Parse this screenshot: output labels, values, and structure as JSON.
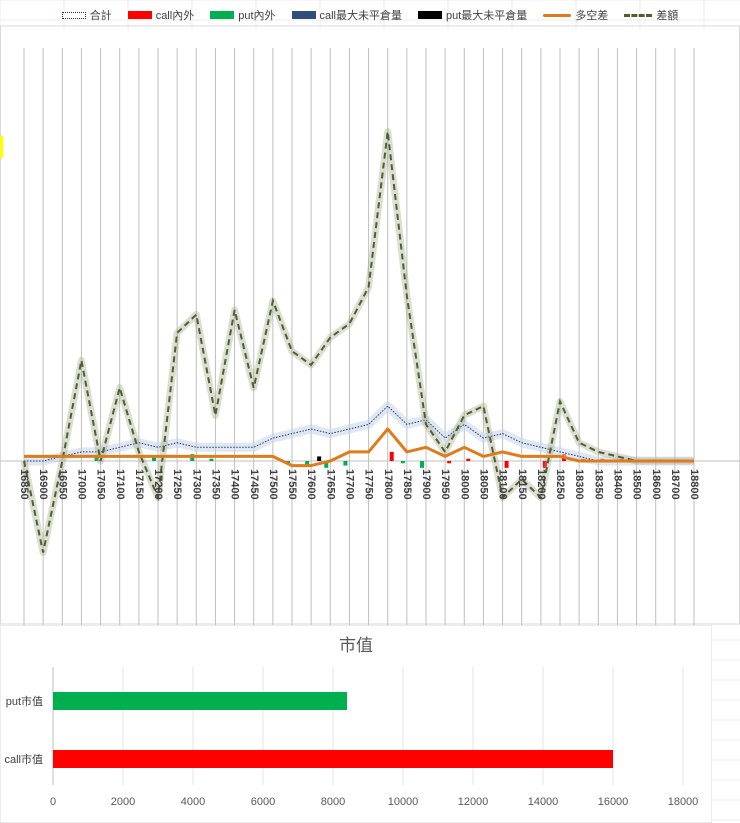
{
  "chart_data": [
    {
      "type": "line",
      "title": "",
      "categories": [
        16850,
        16900,
        16950,
        17000,
        17050,
        17100,
        17150,
        17200,
        17250,
        17300,
        17350,
        17400,
        17450,
        17500,
        17550,
        17600,
        17650,
        17700,
        17750,
        17800,
        17850,
        17900,
        17950,
        18000,
        18050,
        18100,
        18150,
        18200,
        18250,
        18300,
        18350,
        18400,
        18500,
        18600,
        18700,
        18800
      ],
      "series": [
        {
          "name": "合計",
          "kind": "line-dotted",
          "values": [
            0,
            0,
            1,
            2,
            2,
            3,
            4,
            3,
            4,
            3,
            3,
            3,
            3,
            5,
            6,
            7,
            6,
            7,
            8,
            12,
            8,
            9,
            5,
            8,
            5,
            6,
            4,
            3,
            2,
            1,
            0,
            0,
            0,
            0,
            0,
            0
          ]
        },
        {
          "name": "call內外",
          "kind": "bar",
          "values": [
            0,
            0,
            0,
            0,
            0,
            0,
            0,
            0,
            0,
            0,
            0,
            0,
            0,
            0,
            0,
            0,
            0,
            0,
            0,
            4,
            0,
            0,
            -1,
            1,
            0,
            -3,
            0,
            -3,
            3,
            1,
            1,
            1,
            0,
            0,
            0,
            0
          ]
        },
        {
          "name": "put內外",
          "kind": "bar",
          "values": [
            0,
            0,
            0,
            0,
            2,
            0,
            0,
            2,
            0,
            3,
            1,
            0,
            0,
            0,
            -1,
            -2,
            -3,
            -2,
            0,
            0,
            -1,
            -3,
            0,
            0,
            0,
            0,
            0,
            0,
            0,
            0,
            0,
            0,
            0,
            0,
            0,
            0
          ]
        },
        {
          "name": "call最大未平倉量",
          "kind": "bar",
          "values": [
            0,
            0,
            0,
            0,
            0,
            0,
            0,
            0,
            0,
            0,
            0,
            0,
            0,
            0,
            0,
            0,
            0,
            0,
            0,
            0,
            0,
            0,
            0,
            0,
            0,
            0,
            0,
            0,
            0,
            0,
            0,
            0,
            0,
            0,
            0,
            0
          ]
        },
        {
          "name": "put最大未平倉量",
          "kind": "bar",
          "values": [
            0,
            0,
            0,
            0,
            0,
            0,
            0,
            0,
            0,
            0,
            0,
            0,
            0,
            0,
            0,
            2,
            0,
            0,
            0,
            0,
            0,
            0,
            0,
            0,
            0,
            0,
            0,
            0,
            0,
            0,
            0,
            0,
            0,
            0,
            0,
            0
          ]
        },
        {
          "name": "多空差",
          "kind": "line",
          "values": [
            1,
            1,
            1,
            1,
            1,
            1,
            1,
            1,
            1,
            1,
            1,
            1,
            1,
            1,
            -1,
            -1,
            0,
            2,
            2,
            7,
            2,
            3,
            1,
            3,
            1,
            2,
            1,
            1,
            1,
            0,
            0,
            0,
            0,
            0,
            0,
            0
          ]
        },
        {
          "name": "差額",
          "kind": "line-dashed",
          "values": [
            0,
            -20,
            0,
            22,
            0,
            16,
            2,
            -8,
            28,
            32,
            10,
            33,
            16,
            35,
            24,
            21,
            27,
            30,
            38,
            72,
            36,
            8,
            2,
            10,
            12,
            -8,
            -4,
            -8,
            13,
            4,
            2,
            1,
            0,
            0,
            0,
            0
          ]
        }
      ],
      "ylim": [
        -32,
        80
      ],
      "grid": "vertical",
      "legend": "top"
    },
    {
      "type": "bar",
      "orientation": "horizontal",
      "title": "市值",
      "categories": [
        "put市值",
        "call市值"
      ],
      "values": [
        8400,
        16000
      ],
      "colors": [
        "#00b050",
        "#ff0000"
      ],
      "xlim": [
        0,
        18000
      ],
      "xticks": [
        0,
        2000,
        4000,
        6000,
        8000,
        10000,
        12000,
        14000,
        16000,
        18000
      ]
    }
  ],
  "colors": {
    "call": "#ff0000",
    "put": "#00b050",
    "call_max": "#2f4e79",
    "put_max": "#000000",
    "diff": "#e07b1a",
    "amount": "#4f5f32",
    "total": "#1f3864",
    "grid": "#bfbfbf"
  }
}
